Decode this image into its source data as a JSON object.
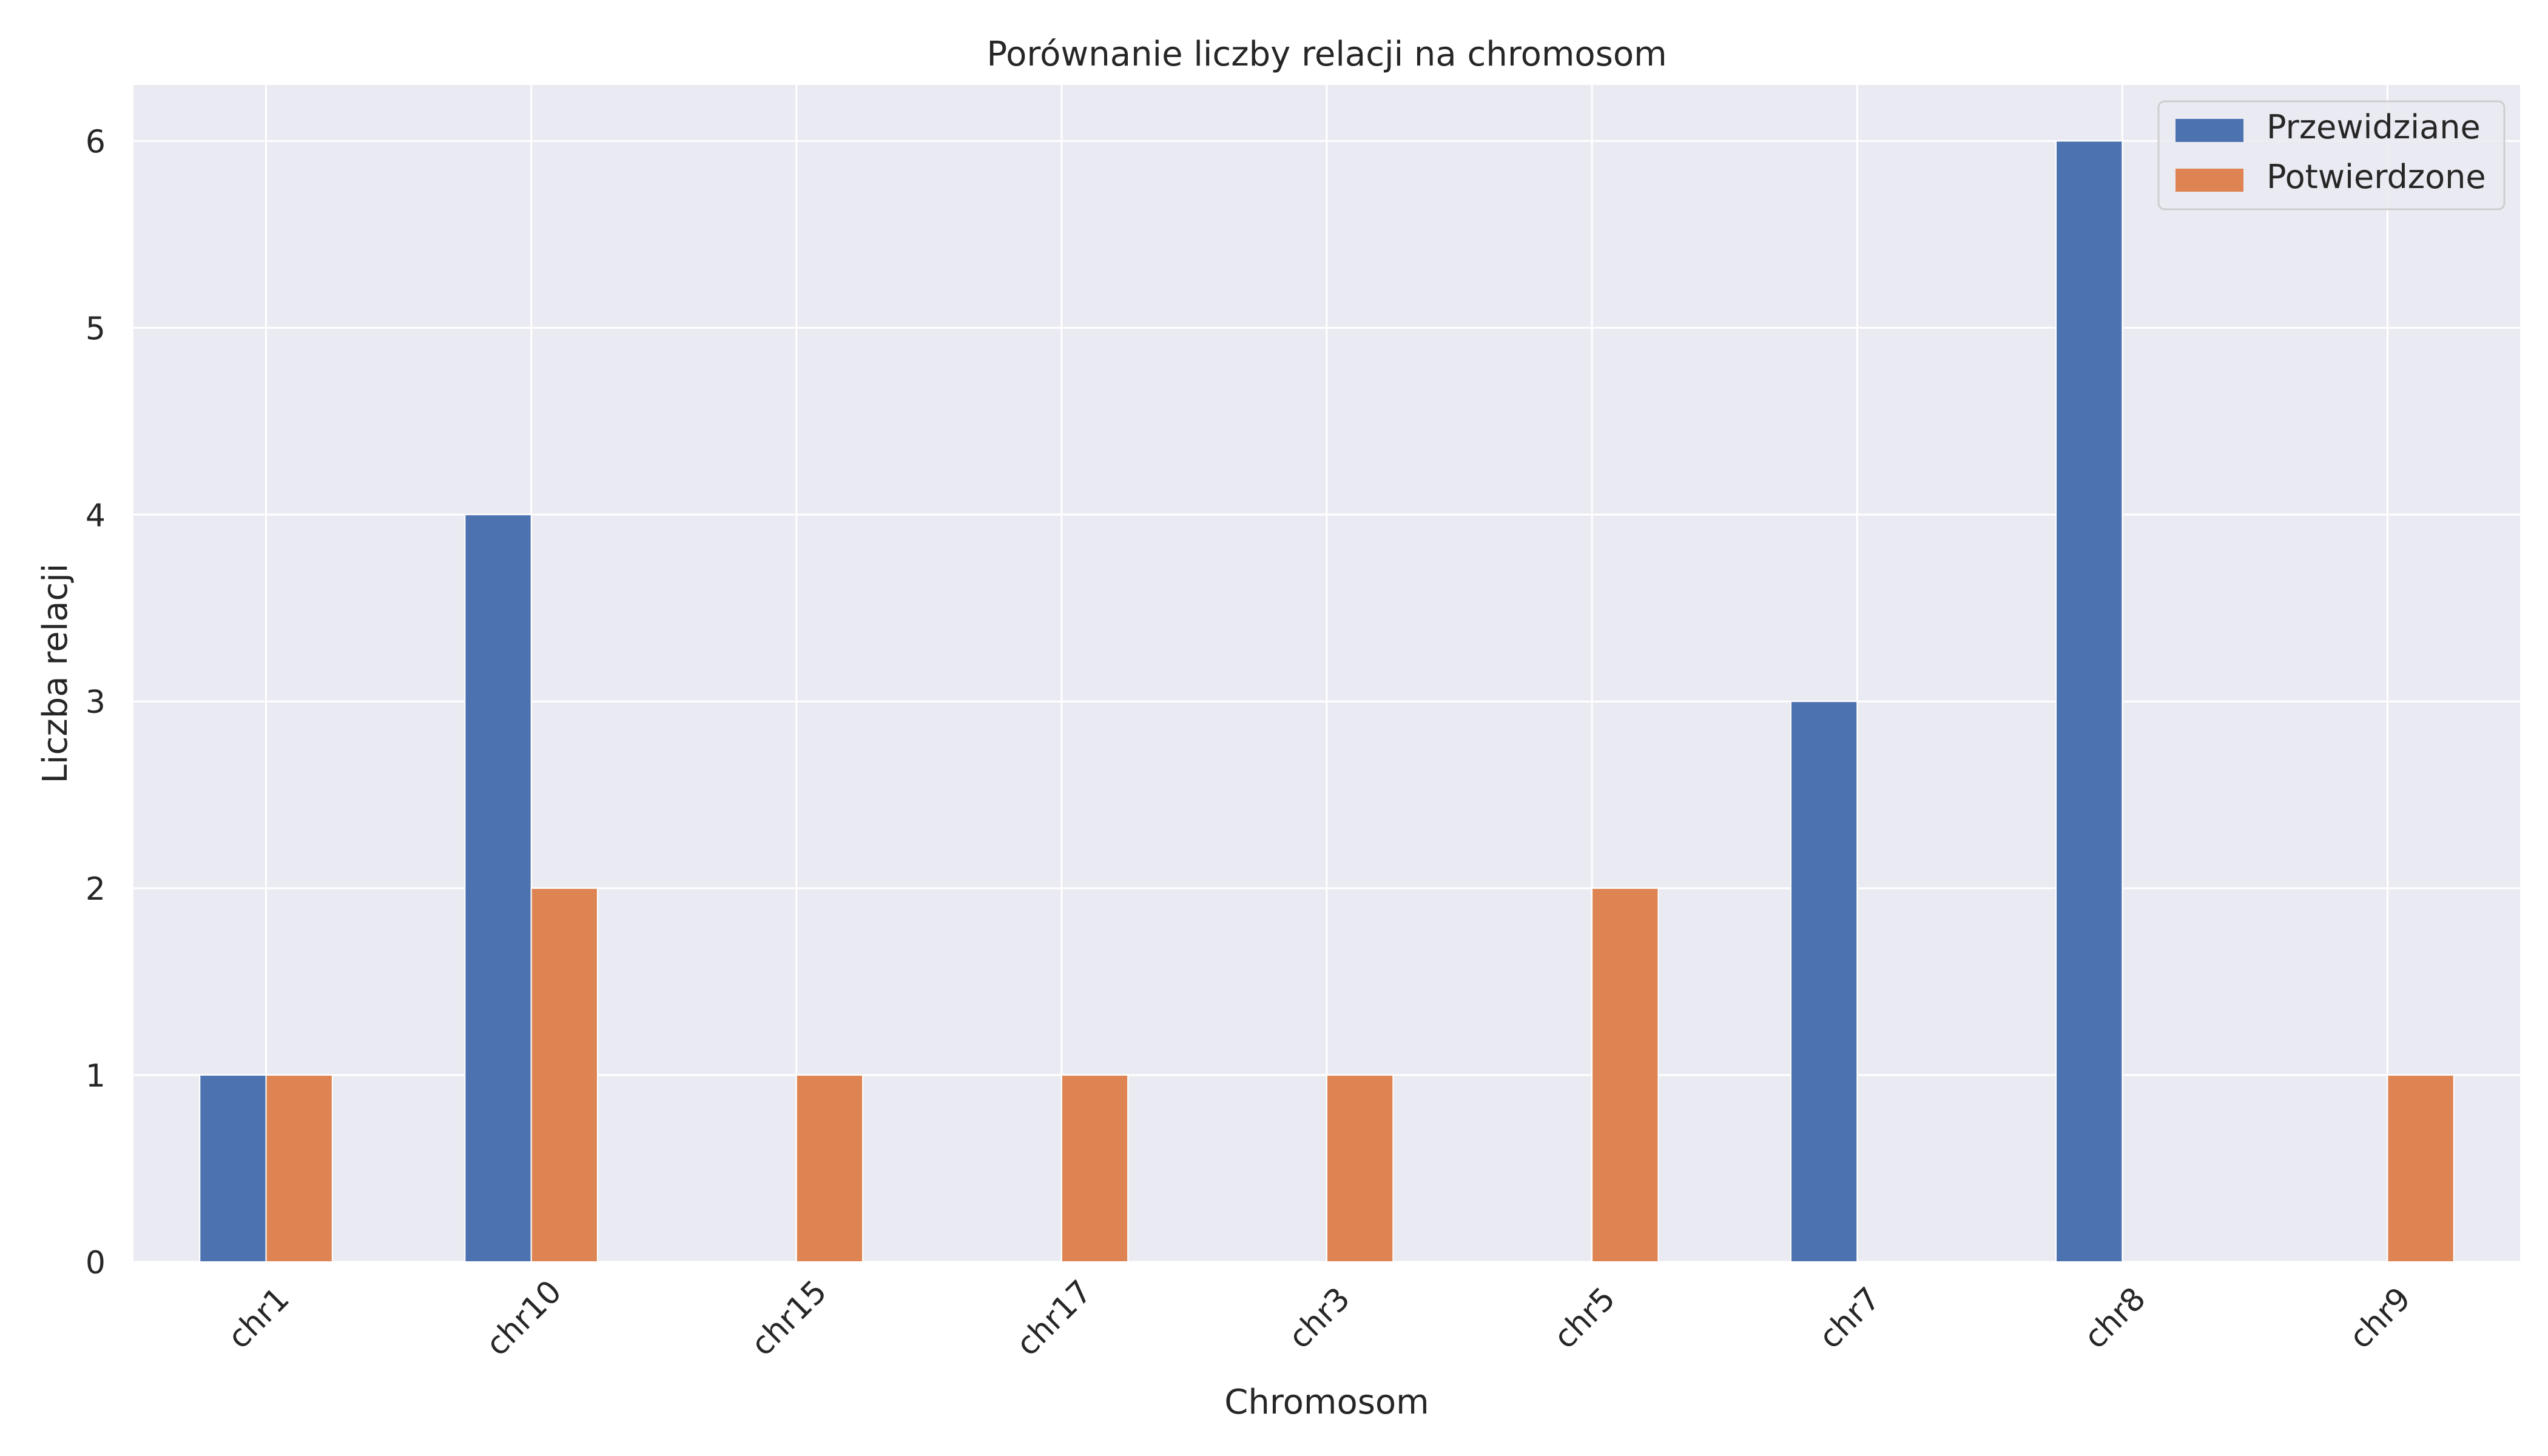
{
  "chart_data": {
    "type": "bar",
    "title": "Porównanie liczby relacji na chromosom",
    "xlabel": "Chromosom",
    "ylabel": "Liczba relacji",
    "categories": [
      "chr1",
      "chr10",
      "chr15",
      "chr17",
      "chr3",
      "chr5",
      "chr7",
      "chr8",
      "chr9"
    ],
    "series": [
      {
        "name": "Przewidziane",
        "values": [
          1,
          4,
          0,
          0,
          0,
          0,
          3,
          6,
          0
        ],
        "color": "#4c72b0"
      },
      {
        "name": "Potwierdzone",
        "values": [
          1,
          2,
          1,
          1,
          1,
          2,
          0,
          0,
          1
        ],
        "color": "#dd8452"
      }
    ],
    "ylim": [
      0,
      6.3
    ],
    "yticks": [
      0,
      1,
      2,
      3,
      4,
      5,
      6
    ],
    "grid": true,
    "legend_position": "top-right",
    "background_color": "#eaeaf2",
    "grid_color": "#ffffff"
  }
}
